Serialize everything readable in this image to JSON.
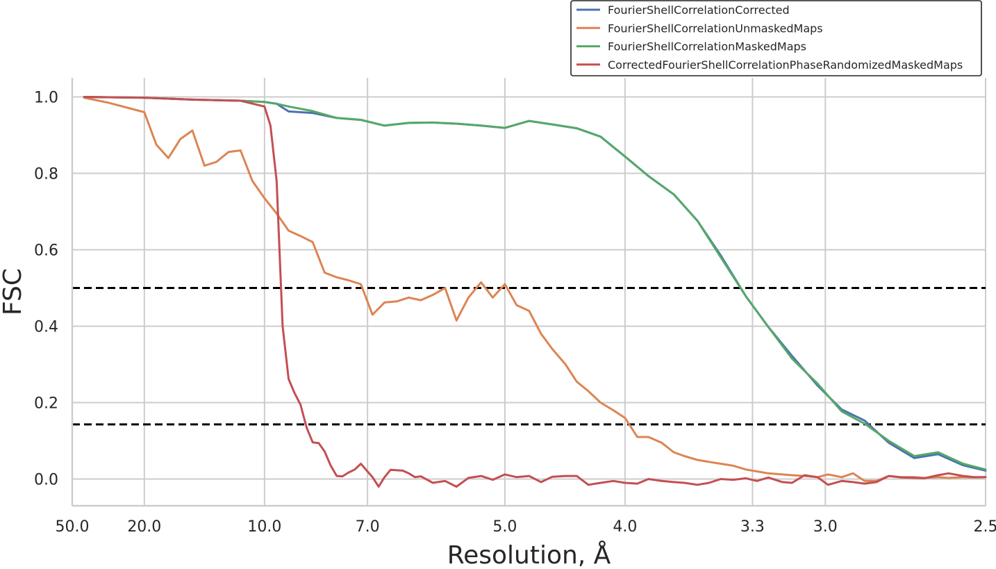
{
  "chart_data": {
    "type": "line",
    "xlabel": "Resolution, Å",
    "ylabel": "FSC",
    "x_scale": "inverse-resolution",
    "xlim": [
      50.0,
      2.5
    ],
    "ylim": [
      -0.07,
      1.05
    ],
    "x_ticks": [
      {
        "value": 50.0,
        "label": "50.0"
      },
      {
        "value": 20.0,
        "label": "20.0"
      },
      {
        "value": 10.0,
        "label": "10.0"
      },
      {
        "value": 7.0,
        "label": "7.0"
      },
      {
        "value": 5.0,
        "label": "5.0"
      },
      {
        "value": 4.0,
        "label": "4.0"
      },
      {
        "value": 3.3,
        "label": "3.3"
      },
      {
        "value": 3.0,
        "label": "3.0"
      },
      {
        "value": 2.5,
        "label": "2.5"
      }
    ],
    "y_ticks": [
      {
        "value": 0.0,
        "label": "0.0"
      },
      {
        "value": 0.2,
        "label": "0.2"
      },
      {
        "value": 0.4,
        "label": "0.4"
      },
      {
        "value": 0.6,
        "label": "0.6"
      },
      {
        "value": 0.8,
        "label": "0.8"
      },
      {
        "value": 1.0,
        "label": "1.0"
      }
    ],
    "grid": true,
    "legend_position": "top-right",
    "thresholds": [
      0.5,
      0.143
    ],
    "series": [
      {
        "name": "FourierShellCorrelationCorrected",
        "color": "#4c72b0",
        "x": [
          40.0,
          20.0,
          14.29,
          11.11,
          10.0,
          9.52,
          9.09,
          8.33,
          7.69,
          7.14,
          6.67,
          6.25,
          5.88,
          5.56,
          5.26,
          5.0,
          4.76,
          4.55,
          4.35,
          4.17,
          4.0,
          3.85,
          3.7,
          3.57,
          3.45,
          3.33,
          3.23,
          3.13,
          3.03,
          2.94,
          2.86,
          2.78,
          2.7,
          2.63,
          2.56,
          2.5
        ],
        "y": [
          1.0,
          0.998,
          0.993,
          0.99,
          0.987,
          0.982,
          0.962,
          0.958,
          0.945,
          0.94,
          0.925,
          0.932,
          0.933,
          0.93,
          0.925,
          0.919,
          0.937,
          0.928,
          0.918,
          0.896,
          0.844,
          0.793,
          0.745,
          0.676,
          0.585,
          0.478,
          0.398,
          0.322,
          0.245,
          0.182,
          0.153,
          0.095,
          0.055,
          0.065,
          0.036,
          0.022
        ]
      },
      {
        "name": "FourierShellCorrelationUnmaskedMaps",
        "color": "#dd8452",
        "x": [
          40.0,
          28.57,
          20.0,
          18.18,
          16.67,
          15.38,
          14.29,
          13.33,
          12.5,
          11.76,
          11.11,
          10.53,
          10.0,
          9.52,
          9.09,
          8.7,
          8.33,
          8.0,
          7.69,
          7.41,
          7.14,
          6.9,
          6.67,
          6.45,
          6.25,
          6.06,
          5.88,
          5.71,
          5.56,
          5.41,
          5.26,
          5.13,
          5.0,
          4.88,
          4.76,
          4.65,
          4.55,
          4.44,
          4.35,
          4.26,
          4.17,
          4.08,
          4.0,
          3.92,
          3.85,
          3.77,
          3.7,
          3.64,
          3.57,
          3.51,
          3.45,
          3.39,
          3.33,
          3.28,
          3.23,
          3.17,
          3.13,
          3.08,
          3.03,
          2.99,
          2.94,
          2.9,
          2.86,
          2.82,
          2.78,
          2.74,
          2.7,
          2.67,
          2.63,
          2.6,
          2.56,
          2.53,
          2.5
        ],
        "y": [
          0.998,
          0.985,
          0.96,
          0.875,
          0.84,
          0.89,
          0.912,
          0.82,
          0.83,
          0.856,
          0.86,
          0.78,
          0.735,
          0.695,
          0.65,
          0.636,
          0.62,
          0.54,
          0.528,
          0.52,
          0.51,
          0.43,
          0.462,
          0.465,
          0.475,
          0.468,
          0.482,
          0.5,
          0.415,
          0.475,
          0.515,
          0.475,
          0.51,
          0.455,
          0.44,
          0.38,
          0.34,
          0.3,
          0.255,
          0.23,
          0.2,
          0.18,
          0.16,
          0.11,
          0.11,
          0.095,
          0.07,
          0.06,
          0.05,
          0.045,
          0.04,
          0.035,
          0.025,
          0.02,
          0.015,
          0.012,
          0.01,
          0.008,
          0.005,
          0.012,
          0.005,
          0.015,
          -0.005,
          -0.005,
          0.008,
          0.005,
          0.005,
          0.003,
          0.005,
          0.003,
          0.005,
          0.004,
          0.005
        ]
      },
      {
        "name": "FourierShellCorrelationMaskedMaps",
        "color": "#55a868",
        "x": [
          40.0,
          20.0,
          14.29,
          11.11,
          10.0,
          9.52,
          9.09,
          8.33,
          7.69,
          7.14,
          6.67,
          6.25,
          5.88,
          5.56,
          5.26,
          5.0,
          4.76,
          4.55,
          4.35,
          4.17,
          4.0,
          3.85,
          3.7,
          3.57,
          3.45,
          3.33,
          3.23,
          3.13,
          3.03,
          2.94,
          2.86,
          2.78,
          2.7,
          2.63,
          2.56,
          2.5
        ],
        "y": [
          1.0,
          0.998,
          0.993,
          0.99,
          0.987,
          0.982,
          0.975,
          0.963,
          0.945,
          0.94,
          0.925,
          0.932,
          0.933,
          0.93,
          0.925,
          0.919,
          0.937,
          0.928,
          0.918,
          0.896,
          0.844,
          0.793,
          0.745,
          0.676,
          0.58,
          0.478,
          0.398,
          0.315,
          0.25,
          0.177,
          0.145,
          0.1,
          0.06,
          0.07,
          0.04,
          0.025
        ]
      },
      {
        "name": "CorrectedFourierShellCorrelationPhaseRandomizedMaskedMaps",
        "color": "#c44e52",
        "x": [
          40.0,
          20.0,
          14.29,
          11.11,
          10.0,
          9.76,
          9.52,
          9.3,
          9.09,
          8.89,
          8.7,
          8.51,
          8.33,
          8.16,
          8.0,
          7.84,
          7.69,
          7.55,
          7.41,
          7.27,
          7.14,
          7.02,
          6.9,
          6.78,
          6.67,
          6.56,
          6.45,
          6.35,
          6.25,
          6.15,
          6.06,
          5.88,
          5.71,
          5.56,
          5.41,
          5.26,
          5.13,
          5.0,
          4.88,
          4.76,
          4.65,
          4.55,
          4.44,
          4.35,
          4.26,
          4.17,
          4.08,
          4.0,
          3.92,
          3.85,
          3.77,
          3.7,
          3.64,
          3.57,
          3.51,
          3.45,
          3.39,
          3.33,
          3.28,
          3.23,
          3.17,
          3.13,
          3.08,
          3.03,
          2.99,
          2.94,
          2.9,
          2.86,
          2.82,
          2.78,
          2.74,
          2.7,
          2.67,
          2.63,
          2.6,
          2.56,
          2.53,
          2.5
        ],
        "y": [
          1.0,
          0.998,
          0.993,
          0.99,
          0.975,
          0.925,
          0.78,
          0.4,
          0.262,
          0.225,
          0.195,
          0.135,
          0.096,
          0.094,
          0.072,
          0.035,
          0.008,
          0.007,
          0.017,
          0.025,
          0.04,
          0.023,
          0.005,
          -0.02,
          0.005,
          0.024,
          0.023,
          0.022,
          0.015,
          0.005,
          0.007,
          -0.01,
          -0.005,
          -0.02,
          0.003,
          0.008,
          -0.002,
          0.012,
          0.005,
          0.008,
          -0.008,
          0.006,
          0.008,
          0.008,
          -0.015,
          -0.01,
          -0.005,
          -0.01,
          -0.012,
          0.0,
          -0.005,
          -0.008,
          -0.01,
          -0.015,
          -0.01,
          0.0,
          -0.002,
          0.002,
          -0.005,
          0.004,
          -0.008,
          -0.01,
          0.01,
          0.005,
          -0.015,
          -0.005,
          -0.008,
          -0.012,
          -0.008,
          0.008,
          0.004,
          0.003,
          0.002,
          0.01,
          0.015,
          0.008,
          0.005,
          0.005
        ]
      }
    ]
  }
}
